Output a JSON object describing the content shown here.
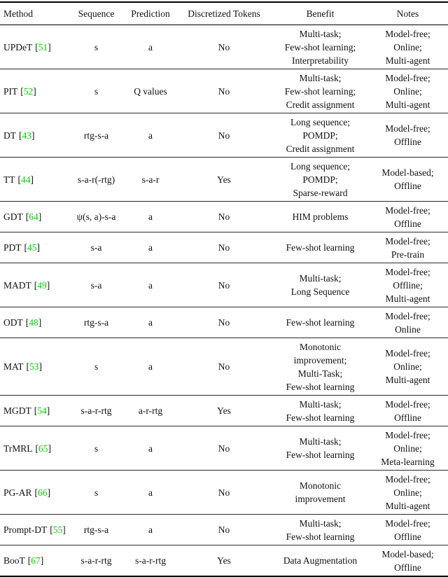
{
  "table": {
    "headers": {
      "method": "Method",
      "sequence": "Sequence",
      "prediction": "Prediction",
      "discretized_tokens": "Discretized Tokens",
      "benefit": "Benefit",
      "notes": "Notes"
    },
    "cite_open": "[",
    "cite_close": "]",
    "citation_color": "#00d600",
    "rows": [
      {
        "method": "UPDeT",
        "cite": "51",
        "sequence": "s",
        "prediction": "a",
        "discretized": "No",
        "benefit": "Multi-task;\nFew-shot learning;\nInterpretability",
        "notes": "Model-free;\nOnline;\nMulti-agent"
      },
      {
        "method": "PIT",
        "cite": "52",
        "sequence": "s",
        "prediction": "Q values",
        "discretized": "No",
        "benefit": "Multi-task;\nFew-shot learning;\nCredit assignment",
        "notes": "Model-free;\nOnline;\nMulti-agent"
      },
      {
        "method": "DT",
        "cite": "43",
        "sequence": "rtg-s-a",
        "prediction": "a",
        "discretized": "No",
        "benefit": "Long sequence;\nPOMDP;\nCredit assignment",
        "notes": "Model-free;\nOffline"
      },
      {
        "method": "TT",
        "cite": "44",
        "sequence": "s-a-r(-rtg)",
        "prediction": "s-a-r",
        "discretized": "Yes",
        "benefit": "Long sequence;\nPOMDP;\nSparse-reward",
        "notes": "Model-based;\nOffline"
      },
      {
        "method": "GDT",
        "cite": "64",
        "sequence": "ψ(s, a)-s-a",
        "prediction": "a",
        "discretized": "No",
        "benefit": "HIM problems",
        "notes": "Model-free;\nOffline"
      },
      {
        "method": "PDT",
        "cite": "45",
        "sequence": "s-a",
        "prediction": "a",
        "discretized": "No",
        "benefit": "Few-shot learning",
        "notes": "Model-free;\nPre-train"
      },
      {
        "method": "MADT",
        "cite": "49",
        "sequence": "s-a",
        "prediction": "a",
        "discretized": "No",
        "benefit": "Multi-task;\nLong Sequence",
        "notes": "Model-free;\nOffline;\nMulti-agent"
      },
      {
        "method": "ODT",
        "cite": "48",
        "sequence": "rtg-s-a",
        "prediction": "a",
        "discretized": "No",
        "benefit": "Few-shot learning",
        "notes": "Model-free;\nOnline"
      },
      {
        "method": "MAT",
        "cite": "53",
        "sequence": "s",
        "prediction": "a",
        "discretized": "No",
        "benefit": "Monotonic improvement;\nMulti-Task;\nFew-shot learning",
        "notes": "Model-free;\nOnline;\nMulti-agent"
      },
      {
        "method": "MGDT",
        "cite": "54",
        "sequence": "s-a-r-rtg",
        "prediction": "a-r-rtg",
        "discretized": "Yes",
        "benefit": "Multi-task;\nFew-shot learning",
        "notes": "Model-free;\nOffline"
      },
      {
        "method": "TrMRL",
        "cite": "65",
        "sequence": "s",
        "prediction": "a",
        "discretized": "No",
        "benefit": "Multi-task;\nFew-shot learning",
        "notes": "Model-free;\nOnline;\nMeta-learning"
      },
      {
        "method": "PG-AR",
        "cite": "66",
        "sequence": "s",
        "prediction": "a",
        "discretized": "No",
        "benefit": "Monotonic improvement",
        "notes": "Model-free;\nOnline;\nMulti-agent"
      },
      {
        "method": "Prompt-DT",
        "cite": "55",
        "sequence": "rtg-s-a",
        "prediction": "a",
        "discretized": "No",
        "benefit": "Multi-task;\nFew-shot learning",
        "notes": "Model-free;\nOffline"
      },
      {
        "method": "BooT",
        "cite": "67",
        "sequence": "s-a-r-rtg",
        "prediction": "s-a-r-rtg",
        "discretized": "Yes",
        "benefit": "Data Augmentation",
        "notes": "Model-based;\nOffline"
      }
    ]
  }
}
